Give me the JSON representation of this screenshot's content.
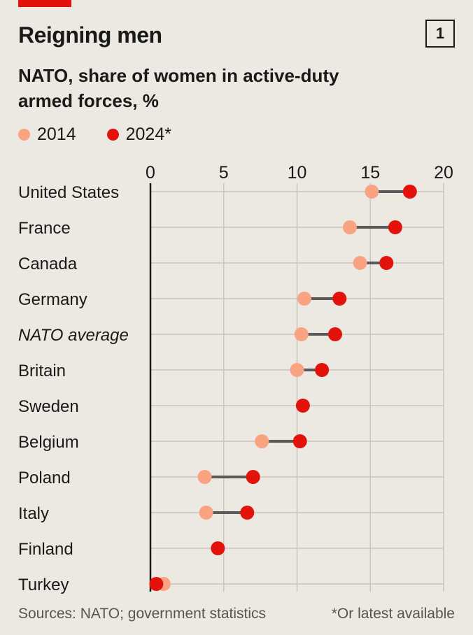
{
  "header": {
    "title": "Reigning men",
    "chart_number": "1",
    "subtitle": "NATO, share of women in active-duty armed forces, %"
  },
  "colors": {
    "accent": "#e3120b",
    "series_2014": "#f9a383",
    "series_2024": "#e3120b",
    "connector": "#5a5a5a",
    "grid": "#c9c6bd",
    "background": "#ebe9e1"
  },
  "chart_data": {
    "type": "dot-plot",
    "title": "Reigning men",
    "subtitle": "NATO, share of women in active-duty armed forces, %",
    "categories": [
      "United States",
      "France",
      "Canada",
      "Germany",
      "NATO average",
      "Britain",
      "Sweden",
      "Belgium",
      "Poland",
      "Italy",
      "Finland",
      "Turkey"
    ],
    "italic_categories": [
      "NATO average"
    ],
    "xlim": [
      0,
      20
    ],
    "xticks": [
      0,
      5,
      10,
      15,
      20
    ],
    "grid": true,
    "legend_position": "top-left",
    "series": [
      {
        "name": "2014",
        "values": [
          15.1,
          13.6,
          14.3,
          10.5,
          10.3,
          10.0,
          null,
          7.6,
          3.7,
          3.8,
          null,
          0.9
        ]
      },
      {
        "name": "2024*",
        "values": [
          17.7,
          16.7,
          16.1,
          12.9,
          12.6,
          11.7,
          10.4,
          10.2,
          7.0,
          6.6,
          4.6,
          0.4
        ]
      }
    ]
  },
  "footer": {
    "source": "Sources: NATO; government statistics",
    "note": "*Or latest available"
  }
}
